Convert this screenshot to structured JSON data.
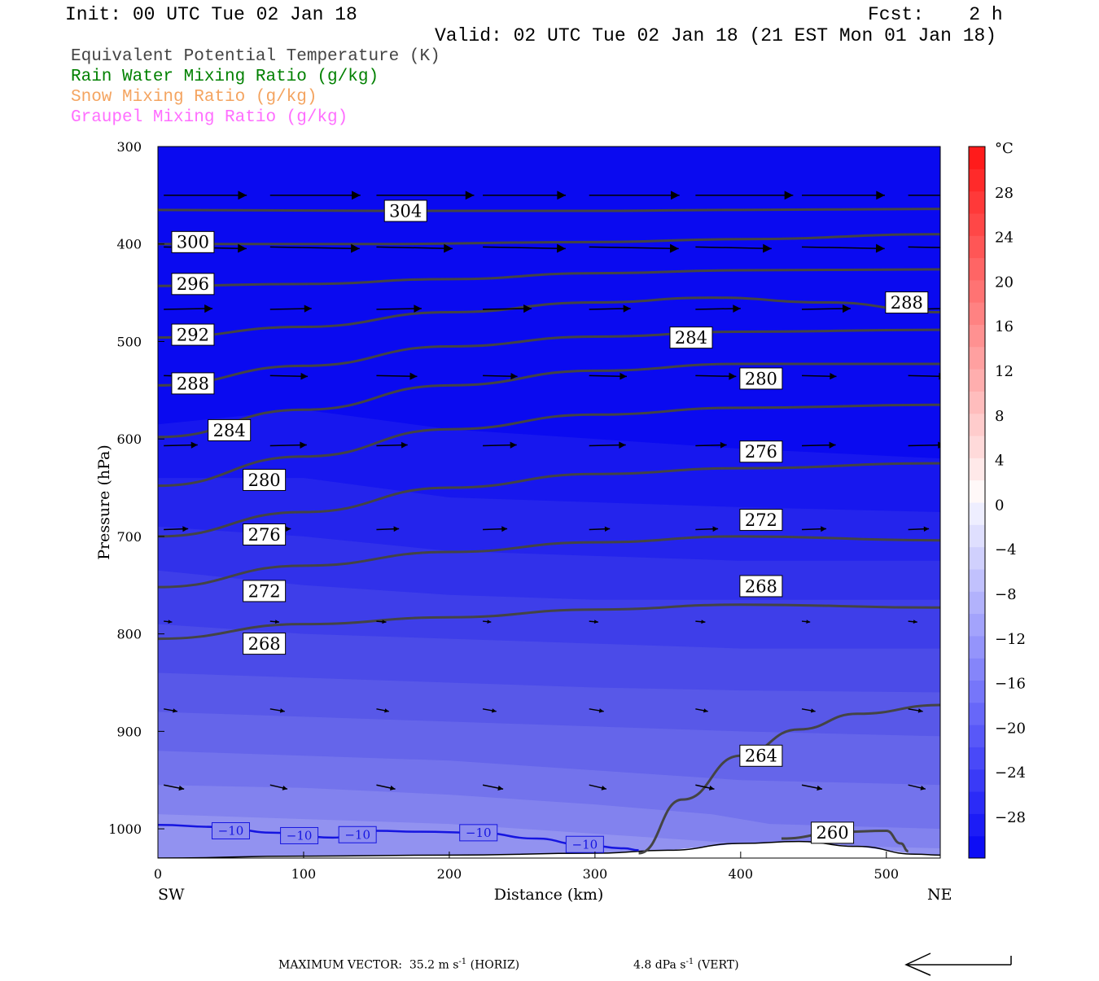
{
  "header": {
    "init": "Init: 00 UTC Tue 02 Jan 18",
    "fcst": "Fcst:    2 h",
    "valid": "Valid: 02 UTC Tue 02 Jan 18 (21 EST Mon 01 Jan 18)"
  },
  "legend": [
    {
      "label": "Equivalent Potential Temperature (K)",
      "color": "#444444"
    },
    {
      "label": "Rain Water Mixing Ratio (g/kg)",
      "color": "#008000"
    },
    {
      "label": "Snow Mixing Ratio (g/kg)",
      "color": "#f4a460"
    },
    {
      "label": "Graupel Mixing Ratio (g/kg)",
      "color": "#ff6eff"
    }
  ],
  "footer": {
    "max_vector": "MAXIMUM VECTOR:  35.2 m s",
    "horiz": "(HORIZ)",
    "vert_value": "4.8 dPa s",
    "vert": "(VERT)",
    "exp": "-1"
  },
  "chart_data": {
    "type": "contour",
    "xlabel": "Distance (km)",
    "ylabel": "Pressure (hPa)",
    "xlim": [
      0,
      537
    ],
    "ylim": [
      1030,
      300
    ],
    "x_ticks": [
      0,
      100,
      200,
      300,
      400,
      500
    ],
    "y_ticks": [
      300,
      400,
      500,
      600,
      700,
      800,
      900,
      1000
    ],
    "x_endpoints": {
      "left": "SW",
      "right": "NE"
    },
    "colorbar": {
      "unit": "°C",
      "levels": [
        -32,
        -30,
        -28,
        -26,
        -24,
        -22,
        -20,
        -18,
        -16,
        -14,
        -12,
        -10,
        -8,
        -6,
        -4,
        -2,
        0,
        2,
        4,
        6,
        8,
        10,
        12,
        14,
        16,
        18,
        20,
        22,
        24,
        26,
        28,
        30,
        32
      ],
      "tick_labels": [
        "°C",
        "28",
        "24",
        "20",
        "16",
        "12",
        "8",
        "4",
        "0",
        "−4",
        "−8",
        "−12",
        "−16",
        "−20",
        "−24",
        "−28"
      ]
    },
    "theta_e_contours": [
      {
        "label": "304",
        "points": [
          [
            0,
            365
          ],
          [
            150,
            366
          ],
          [
            300,
            366
          ],
          [
            400,
            365
          ],
          [
            537,
            364
          ]
        ]
      },
      {
        "label": "300",
        "points": [
          [
            0,
            400
          ],
          [
            150,
            400
          ],
          [
            300,
            398
          ],
          [
            400,
            395
          ],
          [
            537,
            390
          ]
        ]
      },
      {
        "label": "296",
        "points": [
          [
            0,
            443
          ],
          [
            100,
            441
          ],
          [
            200,
            436
          ],
          [
            300,
            430
          ],
          [
            400,
            427
          ],
          [
            537,
            426
          ]
        ]
      },
      {
        "label": "292",
        "points": [
          [
            0,
            496
          ],
          [
            100,
            485
          ],
          [
            200,
            470
          ],
          [
            300,
            460
          ],
          [
            380,
            455
          ],
          [
            460,
            460
          ],
          [
            537,
            470
          ]
        ]
      },
      {
        "label": "288",
        "points": [
          [
            0,
            545
          ],
          [
            100,
            525
          ],
          [
            200,
            505
          ],
          [
            300,
            495
          ],
          [
            400,
            490
          ],
          [
            537,
            488
          ]
        ]
      },
      {
        "label": "284",
        "points": [
          [
            0,
            598
          ],
          [
            100,
            570
          ],
          [
            200,
            545
          ],
          [
            300,
            530
          ],
          [
            400,
            523
          ],
          [
            537,
            523
          ]
        ]
      },
      {
        "label": "280",
        "points": [
          [
            0,
            648
          ],
          [
            100,
            618
          ],
          [
            200,
            590
          ],
          [
            300,
            575
          ],
          [
            400,
            568
          ],
          [
            537,
            565
          ]
        ]
      },
      {
        "label": "276",
        "points": [
          [
            0,
            700
          ],
          [
            100,
            675
          ],
          [
            200,
            650
          ],
          [
            300,
            636
          ],
          [
            400,
            630
          ],
          [
            537,
            625
          ]
        ]
      },
      {
        "label": "272",
        "points": [
          [
            0,
            752
          ],
          [
            100,
            730
          ],
          [
            200,
            716
          ],
          [
            300,
            706
          ],
          [
            400,
            700
          ],
          [
            537,
            704
          ]
        ]
      },
      {
        "label": "268",
        "points": [
          [
            0,
            805
          ],
          [
            100,
            790
          ],
          [
            200,
            783
          ],
          [
            300,
            775
          ],
          [
            400,
            770
          ],
          [
            537,
            773
          ]
        ]
      },
      {
        "label": "264",
        "points": [
          [
            330,
            1025
          ],
          [
            360,
            970
          ],
          [
            400,
            925
          ],
          [
            440,
            898
          ],
          [
            480,
            882
          ],
          [
            537,
            873
          ]
        ]
      },
      {
        "label": "260",
        "points": [
          [
            428,
            1010
          ],
          [
            470,
            1003
          ],
          [
            500,
            1002
          ],
          [
            510,
            1015
          ],
          [
            515,
            1023
          ]
        ]
      }
    ],
    "temperature_contour": {
      "label": "−10",
      "points": [
        [
          0,
          996
        ],
        [
          40,
          998
        ],
        [
          80,
          1004
        ],
        [
          120,
          1009
        ],
        [
          150,
          1002
        ],
        [
          180,
          1003
        ],
        [
          220,
          1004
        ],
        [
          260,
          1010
        ],
        [
          290,
          1016
        ],
        [
          320,
          1020
        ],
        [
          330,
          1022
        ]
      ]
    },
    "wind_vector_max": {
      "horiz_m_s": 35.2,
      "vert_dPa_s": 4.8
    }
  }
}
